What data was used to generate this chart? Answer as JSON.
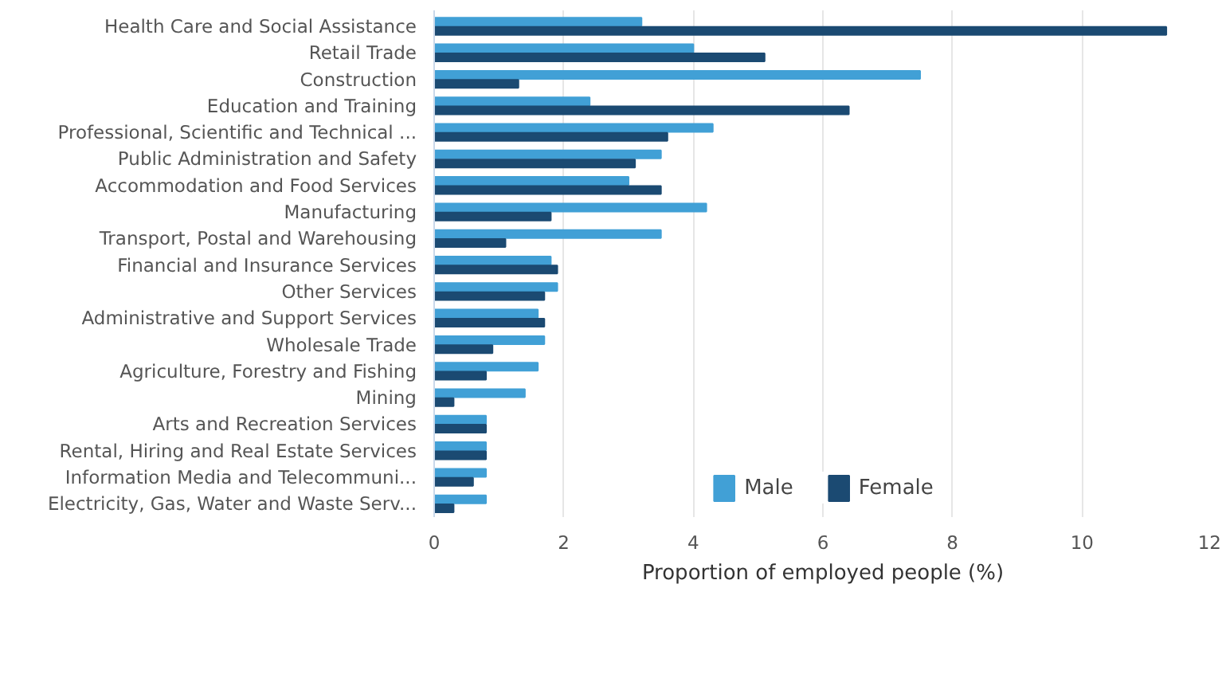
{
  "chart_data": {
    "type": "bar",
    "orientation": "horizontal",
    "xlabel": "Proportion of employed people (%)",
    "categories": [
      "Health Care and Social Assistance",
      "Retail Trade",
      "Construction",
      "Education and Training",
      "Professional, Scientific and Technical ...",
      "Public Administration and Safety",
      "Accommodation and Food Services",
      "Manufacturing",
      "Transport, Postal and Warehousing",
      "Financial and Insurance Services",
      "Other Services",
      "Administrative and Support Services",
      "Wholesale Trade",
      "Agriculture, Forestry and Fishing",
      "Mining",
      "Arts and Recreation Services",
      "Rental, Hiring and Real Estate Services",
      "Information Media and Telecommuni...",
      "Electricity, Gas, Water and Waste Serv..."
    ],
    "series": [
      {
        "name": "Male",
        "color": "#41a0d6",
        "values": [
          3.2,
          4.0,
          7.5,
          2.4,
          4.3,
          3.5,
          3.0,
          4.2,
          3.5,
          1.8,
          1.9,
          1.6,
          1.7,
          1.6,
          1.4,
          0.8,
          0.8,
          0.8,
          0.8
        ]
      },
      {
        "name": "Female",
        "color": "#1b4a72",
        "values": [
          11.3,
          5.1,
          1.3,
          6.4,
          3.6,
          3.1,
          3.5,
          1.8,
          1.1,
          1.9,
          1.7,
          1.7,
          0.9,
          0.8,
          0.3,
          0.8,
          0.8,
          0.6,
          0.3
        ]
      }
    ],
    "xlim": [
      0,
      12
    ],
    "xticks": [
      0,
      2,
      4,
      6,
      8,
      10,
      12
    ],
    "grid": "x",
    "legend": "bottom"
  }
}
